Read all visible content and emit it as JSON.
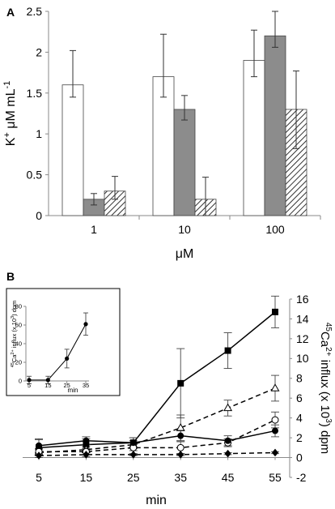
{
  "colors": {
    "bar_white": "#ffffff",
    "bar_grey": "#8c8c8c",
    "bar_hatch": "#ffffff",
    "line": "#000000",
    "axis": "#8a8a8a"
  },
  "chart_data": [
    {
      "panel_label": "A",
      "type": "bar",
      "categories": [
        "1",
        "10",
        "100"
      ],
      "series": [
        {
          "style": "white",
          "values": [
            1.6,
            1.7,
            1.9
          ],
          "error_low": [
            1.45,
            1.45,
            1.7
          ],
          "error_high": [
            2.02,
            2.22,
            2.27
          ]
        },
        {
          "style": "grey",
          "values": [
            0.2,
            1.3,
            2.2
          ],
          "error_low": [
            0.13,
            1.17,
            2.06
          ],
          "error_high": [
            0.27,
            1.47,
            2.5
          ]
        },
        {
          "style": "hatched",
          "values": [
            0.3,
            0.2,
            1.3
          ],
          "error_low": [
            0.2,
            0.0,
            0.82
          ],
          "error_high": [
            0.48,
            0.47,
            1.77
          ]
        }
      ],
      "xlabel": "μM",
      "ylabel": "K",
      "ylabel_sup": "+",
      "ylabel_rest": " μM mL",
      "ylabel_sup2": "-1",
      "ylim": [
        0,
        2.5
      ],
      "yticks": [
        "0",
        "0.5",
        "1",
        "1.5",
        "2",
        "2.5"
      ],
      "grid": false
    },
    {
      "panel_label": "B",
      "type": "line",
      "x": [
        5,
        15,
        25,
        35,
        45,
        55
      ],
      "xticks": [
        "5",
        "15",
        "25",
        "35",
        "45",
        "55"
      ],
      "xlabel": "min",
      "y_axis_side": "right",
      "ylabel_pre": "45",
      "ylabel_ca": "Ca",
      "ylabel_sup": "2+",
      "ylabel_mid": " influx  (x 10",
      "ylabel_sup2": "3",
      "ylabel_end": ") dpm",
      "ylim": [
        -2,
        16
      ],
      "yticks": [
        "-2",
        "0",
        "2",
        "4",
        "6",
        "8",
        "10",
        "12",
        "14",
        "16"
      ],
      "series": [
        {
          "marker": "square-filled",
          "dash": "solid",
          "values": [
            1.0,
            1.3,
            1.5,
            7.5,
            10.8,
            14.7
          ],
          "err": [
            0.8,
            0.6,
            0.5,
            3.5,
            1.8,
            1.6
          ]
        },
        {
          "marker": "triangle-open",
          "dash": "dashed",
          "values": [
            0.5,
            0.8,
            1.3,
            3.0,
            5.0,
            7.0
          ],
          "err": [
            0.3,
            0.3,
            0.4,
            1.3,
            0.8,
            1.3
          ]
        },
        {
          "marker": "circle-open",
          "dash": "dashed",
          "values": [
            0.6,
            0.6,
            1.0,
            1.0,
            1.5,
            3.8
          ],
          "err": [
            0.3,
            0.3,
            0.3,
            0.6,
            0.4,
            0.8
          ]
        },
        {
          "marker": "circle-filled",
          "dash": "solid",
          "values": [
            1.2,
            1.7,
            1.5,
            2.2,
            1.7,
            2.7
          ],
          "err": [
            0.7,
            0.4,
            0.5,
            0.5,
            0.5,
            0.6
          ]
        },
        {
          "marker": "diamond-filled",
          "dash": "dashed",
          "values": [
            0.2,
            0.3,
            0.3,
            0.3,
            0.4,
            0.5
          ],
          "err": [
            0.2,
            0.2,
            0.1,
            0.1,
            0.1,
            0.1
          ]
        }
      ]
    },
    {
      "panel_label": "",
      "type": "line",
      "role": "inset",
      "x": [
        5,
        15,
        25,
        35
      ],
      "xticks": [
        "5",
        "15",
        "25",
        "35"
      ],
      "xlabel": "min",
      "ylabel_pre": "45",
      "ylabel_ca": "Ca",
      "ylabel_sup": "2+",
      "ylabel_mid": " influx  (x 10",
      "ylabel_sup2": "3",
      "ylabel_end": ") dpm",
      "ylim": [
        0,
        80
      ],
      "yticks": [
        "0",
        "20",
        "40",
        "60",
        "80"
      ],
      "series": [
        {
          "marker": "circle-filled",
          "dash": "solid",
          "values": [
            1.0,
            1.0,
            24.0,
            61.0
          ],
          "err": [
            4.0,
            4.0,
            10.0,
            12.0
          ]
        }
      ]
    }
  ]
}
